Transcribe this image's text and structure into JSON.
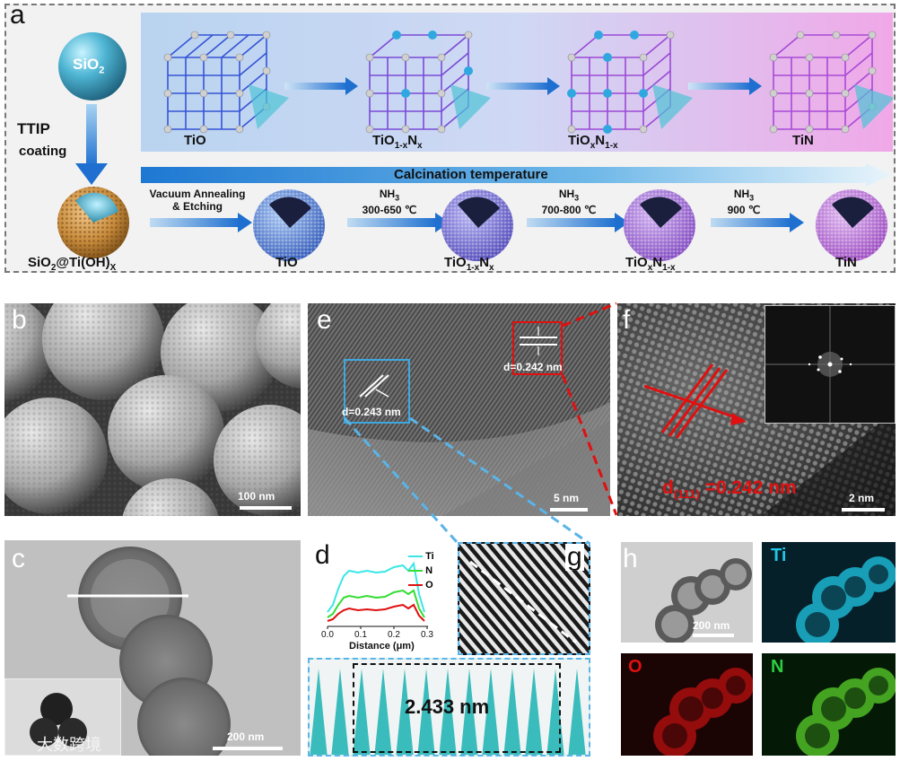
{
  "panel_a": {
    "letter": "a",
    "sio2": "SiO",
    "sio2_sub": "2",
    "ttip": "TTIP",
    "coating": "coating",
    "core_shell_main": "SiO",
    "core_shell_sub1": "2",
    "core_shell_mid": "@Ti(OH)",
    "core_shell_sub2": "X",
    "calcination": "Calcination temperature",
    "top_species": [
      {
        "main": "TiO",
        "sub1": "",
        "mid": "",
        "sub2": ""
      },
      {
        "main": "TiO",
        "sub1": "1-x",
        "mid": "N",
        "sub2": "x"
      },
      {
        "main": "TiO",
        "sub1": "x",
        "mid": "N",
        "sub2": "1-x"
      },
      {
        "main": "TiN",
        "sub1": "",
        "mid": "",
        "sub2": ""
      }
    ],
    "bottom_species": [
      {
        "main": "TiO",
        "sub1": "",
        "mid": "",
        "sub2": ""
      },
      {
        "main": "TiO",
        "sub1": "1-x",
        "mid": "N",
        "sub2": "x"
      },
      {
        "main": "TiO",
        "sub1": "x",
        "mid": "N",
        "sub2": "1-x"
      },
      {
        "main": "TiN",
        "sub1": "",
        "mid": "",
        "sub2": ""
      }
    ],
    "arrow1_line1": "Vacuum Annealing",
    "arrow1_line2": "& Etching",
    "arrow2_line1": "NH",
    "arrow2_sub": "3",
    "arrow2_line2": "300-650 ℃",
    "arrow3_line1": "NH",
    "arrow3_sub": "3",
    "arrow3_line2": "700-800 ℃",
    "arrow4_line1": "NH",
    "arrow4_sub": "3",
    "arrow4_line2": "900 ℃"
  },
  "panel_b": {
    "letter": "b",
    "scale": "100 nm"
  },
  "panel_c": {
    "letter": "c",
    "scale": "200 nm",
    "watermark": "大数跨境"
  },
  "panel_e": {
    "letter": "e",
    "scale": "5 nm",
    "d1": "d=0.243 nm",
    "d2": "d=0.242 nm"
  },
  "panel_f": {
    "letter": "f",
    "scale": "2 nm",
    "d_main": "d",
    "d_sub": "(111)",
    "d_value": " =0.242 nm"
  },
  "panel_d": {
    "letter": "d",
    "xlabel": "Distance (μm)",
    "ticks": [
      "0.0",
      "0.1",
      "0.2",
      "0.3"
    ],
    "legend": [
      {
        "name": "Ti",
        "color": "#3ce6e6"
      },
      {
        "name": "N",
        "color": "#33dd33"
      },
      {
        "name": "O",
        "color": "#e01010"
      }
    ]
  },
  "panel_g": {
    "letter": "g",
    "spacing": "2.433 nm"
  },
  "panel_h": {
    "letter": "h",
    "scale": "200 nm",
    "ti": "Ti",
    "o": "O",
    "n": "N"
  },
  "colors": {
    "ti": "#1ec8e6",
    "o": "#e01010",
    "n": "#2ecc40",
    "accent_blue": "#1e78d2"
  }
}
